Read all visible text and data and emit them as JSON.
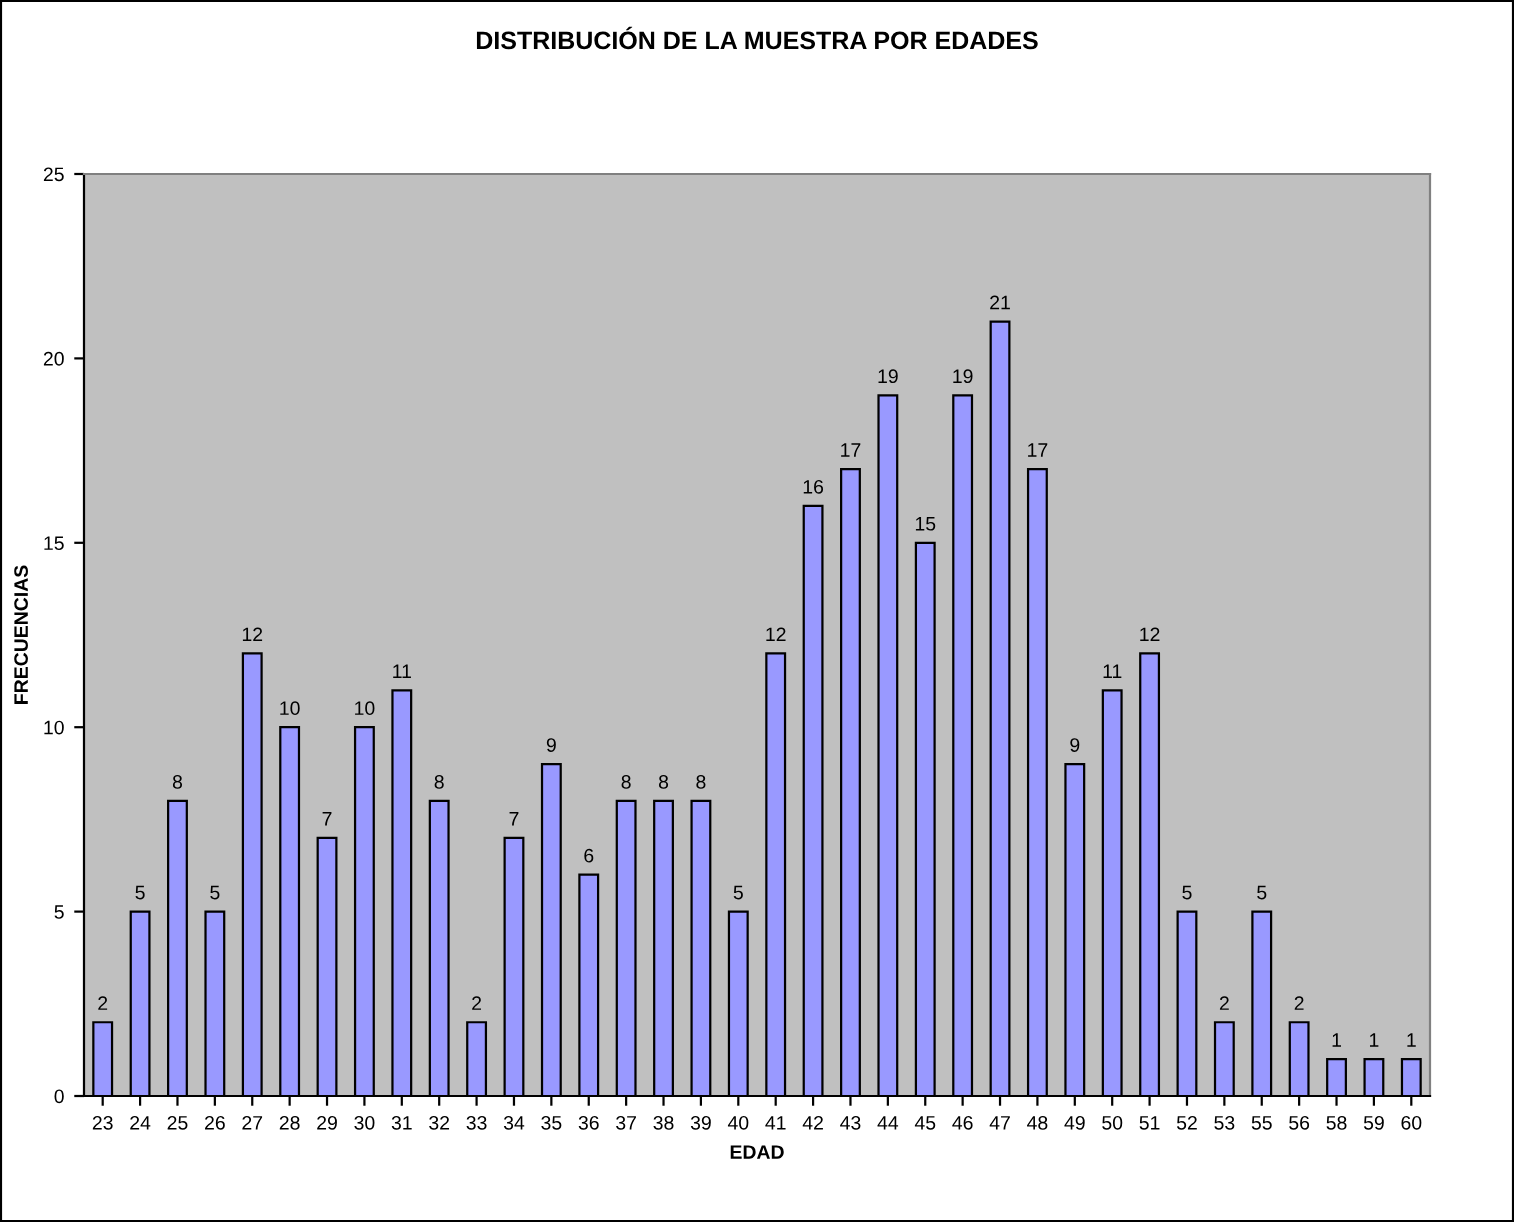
{
  "chart_data": {
    "type": "bar",
    "title": "DISTRIBUCIÓN DE LA MUESTRA POR EDADES",
    "xlabel": "EDAD",
    "ylabel": "FRECUENCIAS",
    "categories": [
      "23",
      "24",
      "25",
      "26",
      "27",
      "28",
      "29",
      "30",
      "31",
      "32",
      "33",
      "34",
      "35",
      "36",
      "37",
      "38",
      "39",
      "40",
      "41",
      "42",
      "43",
      "44",
      "45",
      "46",
      "47",
      "48",
      "49",
      "50",
      "51",
      "52",
      "53",
      "55",
      "56",
      "58",
      "59",
      "60"
    ],
    "values": [
      2,
      5,
      8,
      5,
      12,
      10,
      7,
      10,
      11,
      8,
      2,
      7,
      9,
      6,
      8,
      8,
      8,
      5,
      12,
      16,
      17,
      19,
      15,
      19,
      21,
      17,
      9,
      11,
      12,
      5,
      2,
      5,
      2,
      1,
      1,
      1
    ],
    "color": "#9999ff",
    "ylim": [
      0,
      25
    ],
    "yticks": [
      0,
      5,
      10,
      15,
      20,
      25
    ],
    "data_labels": true,
    "grid": false
  }
}
